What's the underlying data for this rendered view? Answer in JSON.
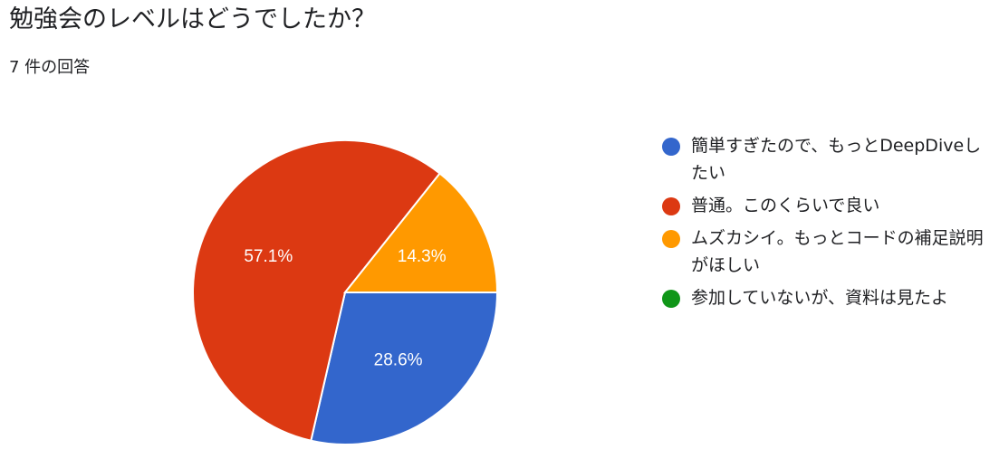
{
  "header": {
    "title": "勉強会のレベルはどうでしたか？",
    "subtitle": "7 件の回答"
  },
  "chart_data": {
    "type": "pie",
    "title": "勉強会のレベルはどうでしたか？",
    "legend_position": "right",
    "categories": [
      "簡単すぎたので、もっとDeepDiveしたい",
      "普通。このくらいで良い",
      "ムズカシイ。もっとコードの補足説明がほしい",
      "参加していないが、資料は見たよ"
    ],
    "values": [
      28.6,
      57.1,
      14.3,
      0
    ],
    "counts": [
      2,
      4,
      1,
      0
    ],
    "data_labels": [
      "28.6%",
      "57.1%",
      "14.3%",
      ""
    ],
    "colors": [
      "#3366cc",
      "#dc3912",
      "#ff9900",
      "#109618"
    ]
  }
}
